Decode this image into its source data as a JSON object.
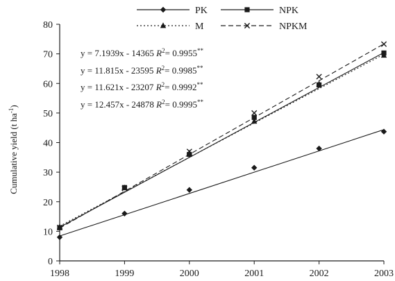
{
  "chart_data": {
    "type": "line",
    "x": [
      1998,
      1999,
      2000,
      2001,
      2002,
      2003
    ],
    "ylabel_main": "Cumulative yield (t ha",
    "ylabel_sup": "-1",
    "ylabel_tail": ")",
    "xlim": [
      1998,
      2003
    ],
    "ylim": [
      0,
      80
    ],
    "yticks": [
      0,
      10,
      20,
      30,
      40,
      50,
      60,
      70,
      80
    ],
    "xticks": [
      1998,
      1999,
      2000,
      2001,
      2002,
      2003
    ],
    "grid": false,
    "legend_position": "top",
    "series": [
      {
        "name": "PK",
        "marker": "diamond",
        "dash": "solid",
        "color": "#1a1a1a",
        "values": [
          8.0,
          16.0,
          24.0,
          31.5,
          38.0,
          43.7
        ],
        "fit": {
          "slope": 7.1939,
          "intercept": -14365
        }
      },
      {
        "name": "NPK",
        "marker": "square",
        "dash": "solid",
        "color": "#1a1a1a",
        "values": [
          11.2,
          24.8,
          36.0,
          48.5,
          59.5,
          70.3
        ],
        "fit": {
          "slope": 11.815,
          "intercept": -23595
        }
      },
      {
        "name": "M",
        "marker": "triangle",
        "dash": "dotted",
        "color": "#1a1a1a",
        "values": [
          11.5,
          24.7,
          36.5,
          47.2,
          59.8,
          69.5
        ],
        "fit": {
          "slope": 11.621,
          "intercept": -23207
        }
      },
      {
        "name": "NPKM",
        "marker": "x",
        "dash": "dashed",
        "color": "#1a1a1a",
        "values": [
          11.3,
          24.5,
          37.0,
          50.0,
          62.3,
          73.3
        ],
        "fit": {
          "slope": 12.457,
          "intercept": -24878
        }
      }
    ],
    "equations": [
      {
        "eq": "y = 7.1939x - 14365",
        "r2_label": "R",
        "r2_sup": "2",
        "r2_value": "= 0.9955",
        "stars": "**"
      },
      {
        "eq": "y = 11.815x - 23595",
        "r2_label": "R",
        "r2_sup": "2",
        "r2_value": "= 0.9985",
        "stars": "**"
      },
      {
        "eq": "y = 11.621x - 23207",
        "r2_label": "R",
        "r2_sup": "2",
        "r2_value": "= 0.9992",
        "stars": "**"
      },
      {
        "eq": "y = 12.457x - 24878",
        "r2_label": "R",
        "r2_sup": "2",
        "r2_value": "= 0.9995",
        "stars": "**"
      }
    ]
  }
}
